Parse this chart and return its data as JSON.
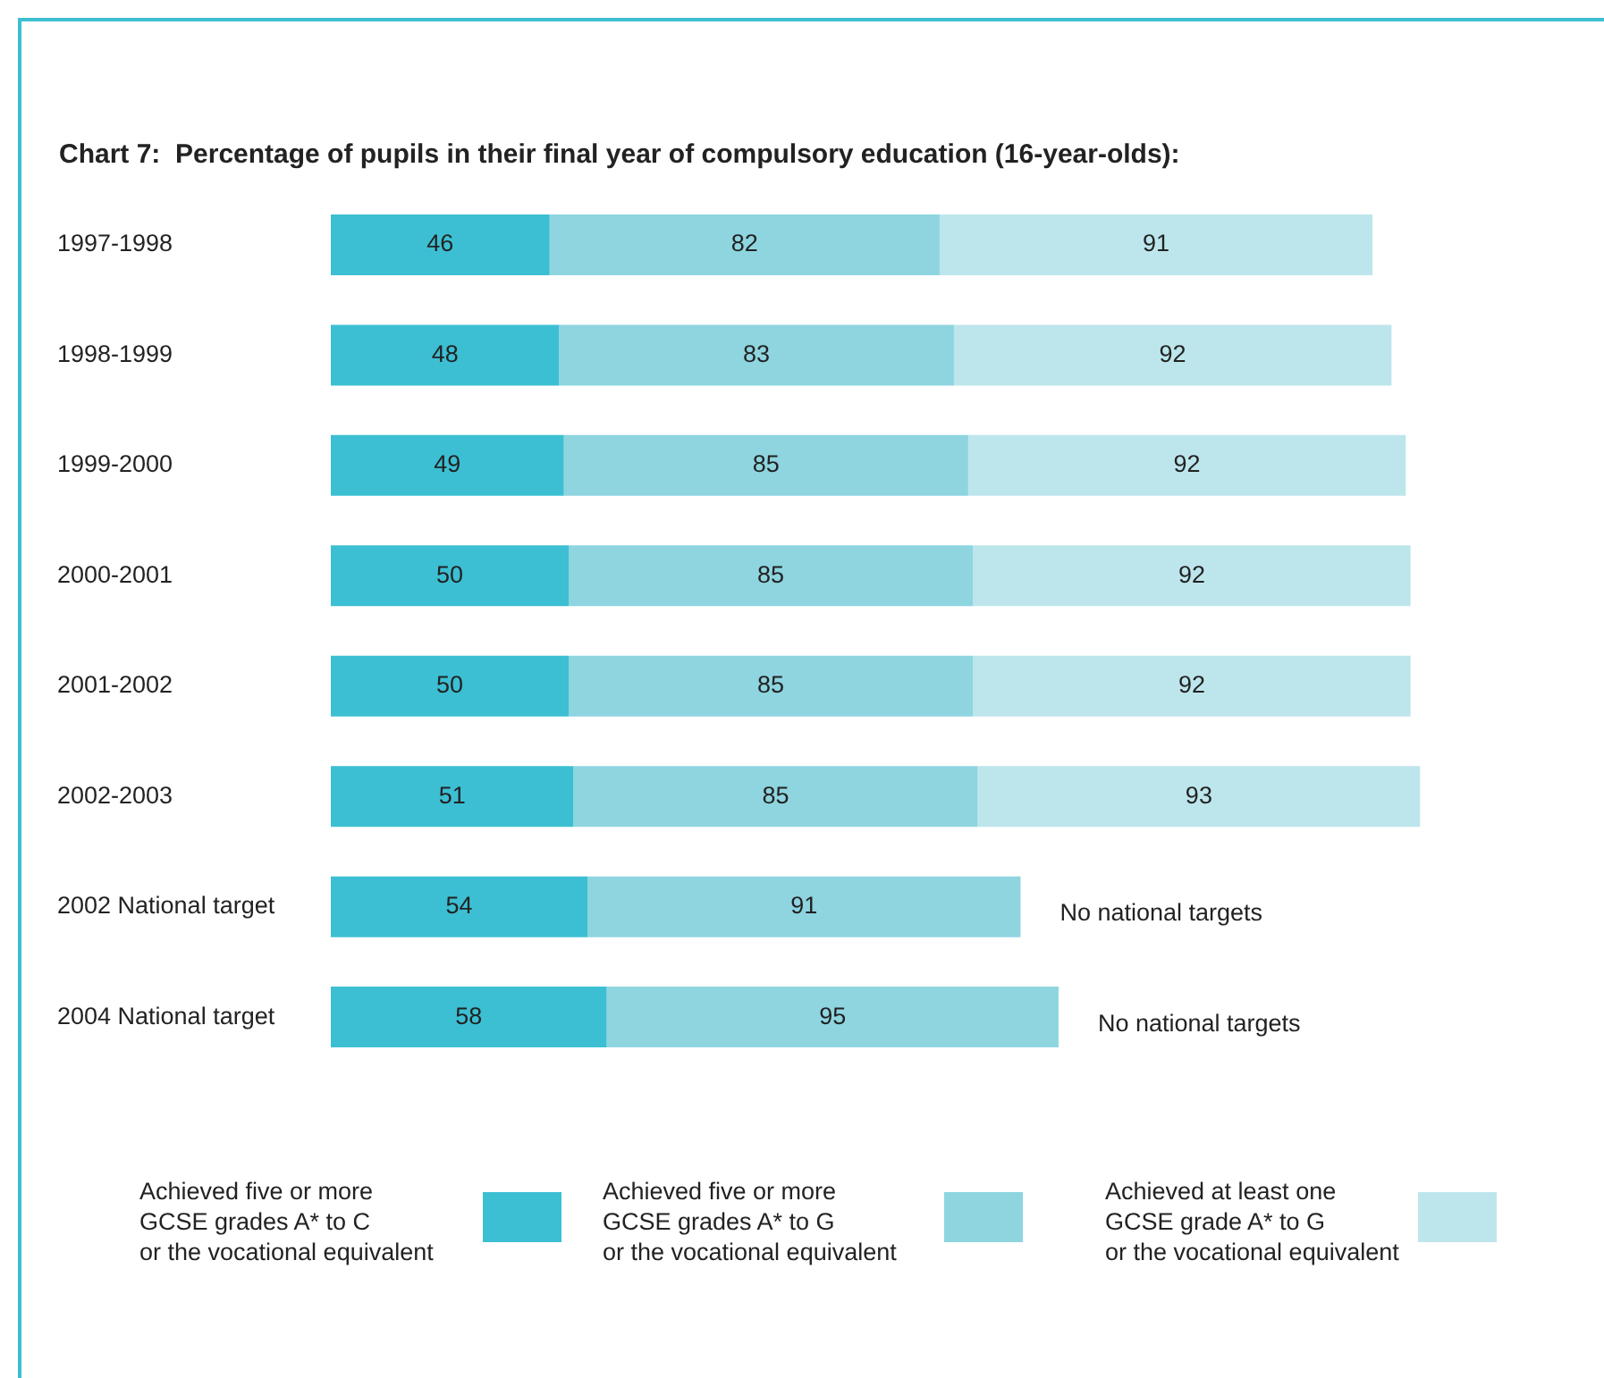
{
  "chart_data": {
    "type": "bar",
    "orientation": "horizontal",
    "stacked": true,
    "title": "Chart 7:  Percentage of pupils in their final year of compulsory education (16-year-olds):",
    "categories": [
      "1997-1998",
      "1998-1999",
      "1999-2000",
      "2000-2001",
      "2001-2002",
      "2002-2003",
      "2002 National target",
      "2004 National target"
    ],
    "series": [
      {
        "name": "Achieved five or more\nGCSE grades A* to C\nor the vocational equivalent",
        "color": "#3cbfd3",
        "values": [
          46,
          48,
          49,
          50,
          50,
          51,
          54,
          58
        ]
      },
      {
        "name": "Achieved five or more\nGCSE grades A* to G\nor the vocational equivalent",
        "color": "#8ed5e0",
        "values": [
          82,
          83,
          85,
          85,
          85,
          85,
          91,
          95
        ]
      },
      {
        "name": "Achieved at least one\nGCSE grade A* to G\nor the vocational equivalent",
        "color": "#bde6ec",
        "values": [
          91,
          92,
          92,
          92,
          92,
          93,
          null,
          null
        ]
      }
    ],
    "data_labels": true,
    "legend": "bottom",
    "annotations": [
      "No national targets",
      "No national targets"
    ]
  }
}
